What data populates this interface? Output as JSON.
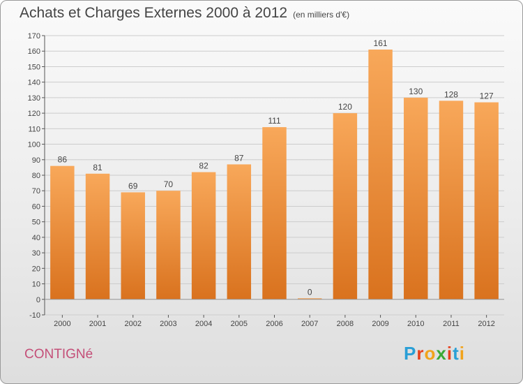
{
  "chart_data": {
    "type": "bar",
    "title": "Achats et Charges Externes 2000 à 2012",
    "unit_label": "(en milliers d'€)",
    "categories": [
      "2000",
      "2001",
      "2002",
      "2003",
      "2004",
      "2005",
      "2006",
      "2007",
      "2008",
      "2009",
      "2010",
      "2011",
      "2012"
    ],
    "values": [
      86,
      81,
      69,
      70,
      82,
      87,
      111,
      0,
      120,
      161,
      130,
      128,
      127
    ],
    "ylim": [
      -10,
      170
    ],
    "yticks": [
      -10,
      0,
      10,
      20,
      30,
      40,
      50,
      60,
      70,
      80,
      90,
      100,
      110,
      120,
      130,
      140,
      150,
      160,
      170
    ],
    "xlabel": "",
    "ylabel": "",
    "grid": true
  },
  "commune": "CONTIGNé",
  "logo": {
    "letters": [
      "P",
      "r",
      "o",
      "x",
      "i",
      "t",
      "i"
    ],
    "colors": [
      "#2a9fd6",
      "#e8401c",
      "#f1a31b",
      "#3aa935",
      "#e8401c",
      "#2a9fd6",
      "#f1a31b"
    ]
  },
  "colors": {
    "bar_top": "#f8a85a",
    "bar_bottom": "#d9721e",
    "axis_text": "#444444",
    "grid": "#cccccc"
  }
}
